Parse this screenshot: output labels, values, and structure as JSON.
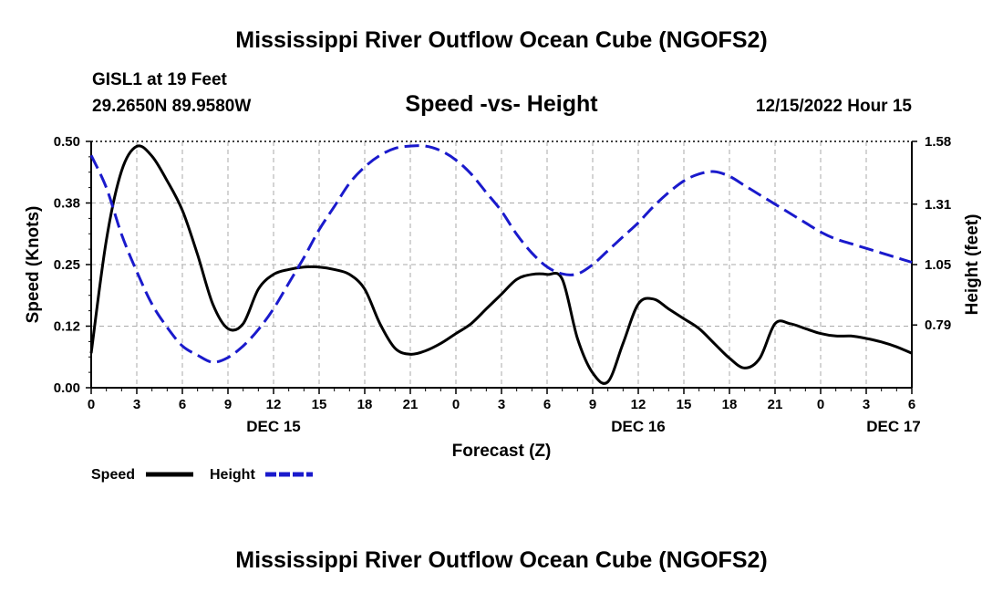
{
  "header": {
    "title": "Mississippi River Outflow Ocean Cube (NGOFS2)",
    "station": "GISL1 at 19 Feet",
    "coords": "29.2650N  89.9580W",
    "subtitle": "Speed -vs- Height",
    "datetime": "12/15/2022 Hour 15"
  },
  "footer": {
    "title": "Mississippi River Outflow Ocean Cube (NGOFS2)"
  },
  "legend": {
    "speed_label": "Speed",
    "height_label": "Height"
  },
  "colors": {
    "speed": "#000000",
    "height": "#1a1acc",
    "grid": "#aaaaaa"
  },
  "chart_data": {
    "type": "line",
    "title": "Speed -vs- Height",
    "xlabel": "Forecast (Z)",
    "ylabel": "Speed (Knots)",
    "y2label": "Height (feet)",
    "xlim": [
      0,
      54
    ],
    "ylim": [
      0,
      0.5
    ],
    "y2lim": [
      0.52,
      1.58
    ],
    "xticks": [
      0,
      3,
      6,
      9,
      12,
      15,
      18,
      21,
      24,
      27,
      30,
      33,
      36,
      39,
      42,
      45,
      48,
      51,
      54
    ],
    "xtick_labels": [
      "0",
      "3",
      "6",
      "9",
      "12",
      "15",
      "18",
      "21",
      "0",
      "3",
      "6",
      "9",
      "12",
      "15",
      "18",
      "21",
      "0",
      "3",
      "6"
    ],
    "date_labels": [
      {
        "x": 12,
        "label": "DEC 15"
      },
      {
        "x": 36,
        "label": "DEC 16"
      },
      {
        "x": 52.8,
        "label": "DEC 17"
      }
    ],
    "yticks": [
      0,
      0.125,
      0.25,
      0.375,
      0.5
    ],
    "ytick_labels": [
      "0.00",
      "0.12",
      "0.25",
      "0.38",
      "0.50"
    ],
    "y2ticks": [
      0.79,
      1.05,
      1.31,
      1.58
    ],
    "y2tick_labels": [
      "0.79",
      "1.05",
      "1.31",
      "1.58"
    ],
    "grid": true,
    "series": [
      {
        "name": "Speed",
        "axis": "left",
        "style": "solid",
        "x": [
          0,
          1,
          2,
          3,
          4,
          5,
          6,
          7,
          8,
          9,
          10,
          11,
          12,
          13,
          14,
          15,
          16,
          17,
          18,
          19,
          20,
          21,
          22,
          23,
          24,
          25,
          26,
          27,
          28,
          29,
          30,
          31,
          32,
          33,
          34,
          35,
          36,
          37,
          38,
          39,
          40,
          41,
          42,
          43,
          44,
          45,
          46,
          47,
          48,
          49,
          50,
          51,
          52,
          53,
          54
        ],
        "y": [
          0.07,
          0.3,
          0.44,
          0.49,
          0.47,
          0.42,
          0.36,
          0.27,
          0.17,
          0.12,
          0.13,
          0.2,
          0.23,
          0.24,
          0.245,
          0.245,
          0.24,
          0.23,
          0.2,
          0.13,
          0.08,
          0.068,
          0.075,
          0.09,
          0.11,
          0.13,
          0.16,
          0.19,
          0.22,
          0.23,
          0.23,
          0.22,
          0.1,
          0.03,
          0.012,
          0.09,
          0.17,
          0.18,
          0.16,
          0.14,
          0.12,
          0.09,
          0.06,
          0.04,
          0.06,
          0.13,
          0.13,
          0.12,
          0.11,
          0.105,
          0.105,
          0.1,
          0.093,
          0.083,
          0.07
        ]
      },
      {
        "name": "Height",
        "axis": "right",
        "style": "dashed",
        "x": [
          0,
          1,
          2,
          3,
          4,
          5,
          6,
          7,
          8,
          9,
          10,
          11,
          12,
          13,
          14,
          15,
          16,
          17,
          18,
          19,
          20,
          21,
          22,
          23,
          24,
          25,
          26,
          27,
          28,
          29,
          30,
          31,
          32,
          33,
          34,
          35,
          36,
          37,
          38,
          39,
          40,
          41,
          42,
          43,
          44,
          45,
          46,
          47,
          48,
          49,
          50,
          51,
          52,
          53,
          54
        ],
        "y": [
          1.52,
          1.38,
          1.18,
          1.02,
          0.88,
          0.78,
          0.7,
          0.66,
          0.63,
          0.65,
          0.7,
          0.77,
          0.86,
          0.97,
          1.08,
          1.2,
          1.3,
          1.4,
          1.47,
          1.52,
          1.55,
          1.56,
          1.56,
          1.54,
          1.5,
          1.44,
          1.36,
          1.28,
          1.18,
          1.1,
          1.04,
          1.01,
          1.01,
          1.05,
          1.11,
          1.17,
          1.23,
          1.3,
          1.36,
          1.41,
          1.44,
          1.45,
          1.43,
          1.39,
          1.35,
          1.31,
          1.27,
          1.23,
          1.19,
          1.16,
          1.14,
          1.12,
          1.1,
          1.08,
          1.06
        ]
      }
    ]
  }
}
